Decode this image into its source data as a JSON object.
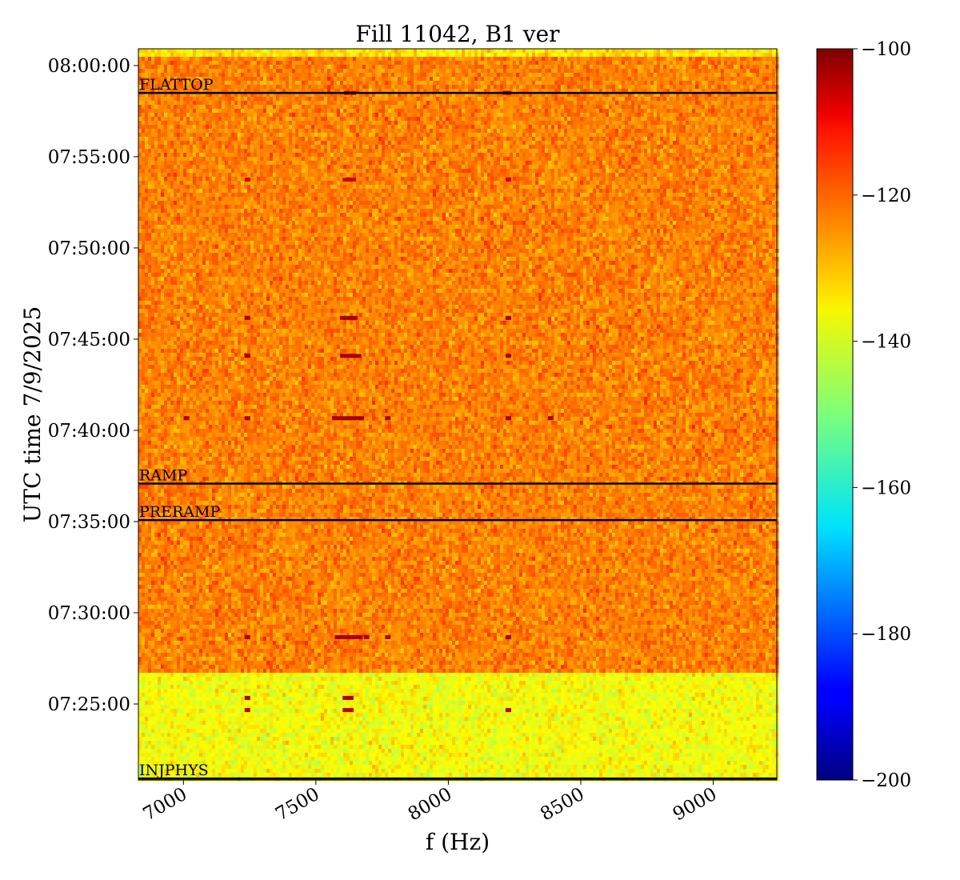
{
  "chart_data": {
    "type": "heatmap",
    "title": "Fill 11042, B1 ver",
    "xlabel": "f (Hz)",
    "ylabel": "UTC time 7/9/2025",
    "xlim": [
      6830,
      9240
    ],
    "x_ticks": [
      {
        "value": 7000,
        "label": "7000"
      },
      {
        "value": 7500,
        "label": "7500"
      },
      {
        "value": 8000,
        "label": "8000"
      },
      {
        "value": 8500,
        "label": "8500"
      },
      {
        "value": 9000,
        "label": "9000"
      }
    ],
    "ylim": [
      "07:20:50",
      "08:00:55"
    ],
    "y_ticks": [
      {
        "value": "07:25:00",
        "label": "07:25:00"
      },
      {
        "value": "07:30:00",
        "label": "07:30:00"
      },
      {
        "value": "07:35:00",
        "label": "07:35:00"
      },
      {
        "value": "07:40:00",
        "label": "07:40:00"
      },
      {
        "value": "07:45:00",
        "label": "07:45:00"
      },
      {
        "value": "07:50:00",
        "label": "07:50:00"
      },
      {
        "value": "07:55:00",
        "label": "07:55:00"
      },
      {
        "value": "08:00:00",
        "label": "08:00:00"
      }
    ],
    "colorbar": {
      "colormap": "jet",
      "range": [
        -200,
        -100
      ],
      "ticks": [
        {
          "value": -100,
          "label": "−100"
        },
        {
          "value": -120,
          "label": "−120"
        },
        {
          "value": -140,
          "label": "−140"
        },
        {
          "value": -160,
          "label": "−160"
        },
        {
          "value": -180,
          "label": "−180"
        },
        {
          "value": -200,
          "label": "−200"
        }
      ]
    },
    "background_levels": [
      {
        "from": "07:20:50",
        "to": "07:26:40",
        "mean": -138
      },
      {
        "from": "07:26:40",
        "to": "08:00:30",
        "mean": -125
      },
      {
        "from": "08:00:30",
        "to": "08:00:55",
        "mean": -135
      }
    ],
    "phase_markers": [
      {
        "label": "FLATTOP",
        "time": "07:58:30"
      },
      {
        "label": "RAMP",
        "time": "07:37:05"
      },
      {
        "label": "PRERAMP",
        "time": "07:35:05"
      },
      {
        "label": "INJPHYS",
        "time": "07:20:55"
      }
    ],
    "hot_spots": [
      {
        "time": "07:58:30",
        "f": [
          7615,
          7640,
          8215,
          8225
        ],
        "level": -104
      },
      {
        "time": "07:53:45",
        "f": [
          7240,
          7610,
          7625,
          7640,
          8225
        ],
        "level": -108
      },
      {
        "time": "07:46:10",
        "f": [
          7240,
          7600,
          7615,
          7630,
          7645,
          8225
        ],
        "level": -104
      },
      {
        "time": "07:44:05",
        "f": [
          7240,
          7600,
          7615,
          7630,
          7645,
          7660,
          8225
        ],
        "level": -104
      },
      {
        "time": "07:40:40",
        "f": [
          7010,
          7240,
          7570,
          7590,
          7610,
          7625,
          7640,
          7655,
          7670,
          7770,
          8225,
          8385
        ],
        "level": -104
      },
      {
        "time": "07:28:40",
        "f": [
          7240,
          7580,
          7600,
          7615,
          7630,
          7645,
          7665,
          7690,
          7770,
          8225
        ],
        "level": -104
      },
      {
        "time": "07:25:20",
        "f": [
          7240,
          7610,
          7630
        ],
        "level": -104
      },
      {
        "time": "07:24:40",
        "f": [
          7240,
          7610,
          7630,
          8225
        ],
        "level": -106
      }
    ]
  }
}
